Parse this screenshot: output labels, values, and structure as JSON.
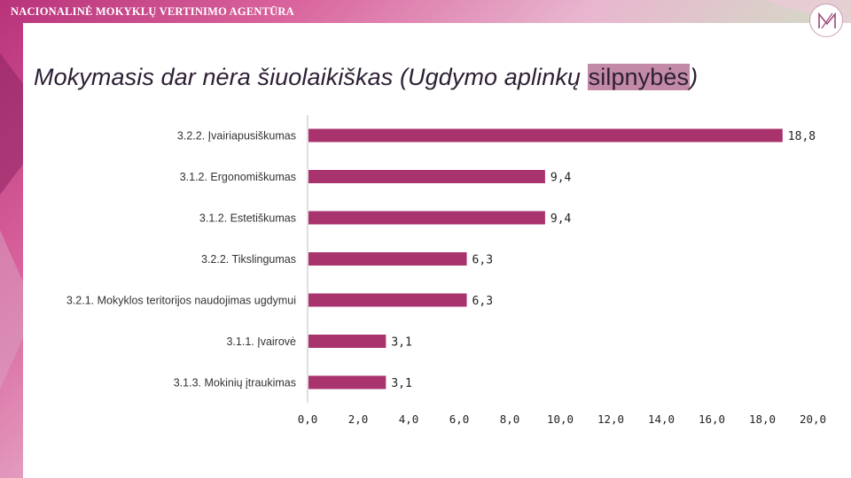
{
  "header": {
    "brand": "NACIONALINĖ MOKYKLŲ VERTINIMO AGENTŪRA",
    "logo_icon": "nmva-logo-icon"
  },
  "slide": {
    "title_main": "Mokymasis dar nėra šiuolaikiškas (Ugdymo aplinkų ",
    "title_highlight": "silpnybės",
    "title_end": ")"
  },
  "colors": {
    "bar": "#a8336d",
    "axis": "#bfbfbf",
    "highlight": "#c38aa8"
  },
  "chart_data": {
    "type": "bar",
    "orientation": "horizontal",
    "title": "",
    "xlabel": "",
    "ylabel": "",
    "categories": [
      "3.2.2. Įvairiapusiškumas",
      "3.1.2. Ergonomiškumas",
      "3.1.2. Estetiškumas",
      "3.2.2. Tikslingumas",
      "3.2.1. Mokyklos teritorijos naudojimas ugdymui",
      "3.1.1. Įvairovė",
      "3.1.3. Mokinių įtraukimas"
    ],
    "values": [
      18.8,
      9.4,
      9.4,
      6.3,
      6.3,
      3.1,
      3.1
    ],
    "value_labels": [
      "18,8",
      "9,4",
      "9,4",
      "6,3",
      "6,3",
      "3,1",
      "3,1"
    ],
    "xlim": [
      0,
      20
    ],
    "xticks": [
      0,
      2,
      4,
      6,
      8,
      10,
      12,
      14,
      16,
      18,
      20
    ],
    "xtick_labels": [
      "0,0",
      "2,0",
      "4,0",
      "6,0",
      "8,0",
      "10,0",
      "12,0",
      "14,0",
      "16,0",
      "18,0",
      "20,0"
    ],
    "grid": false,
    "legend": "none"
  }
}
